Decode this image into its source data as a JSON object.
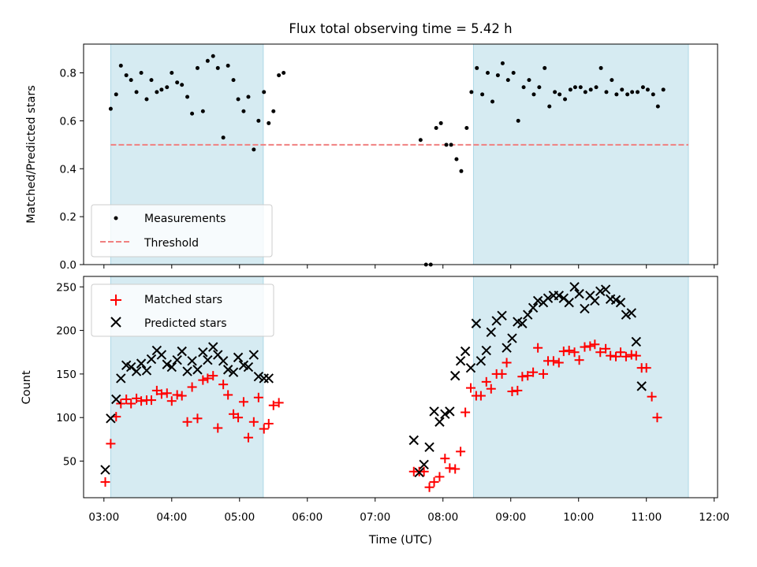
{
  "chart_data": [
    {
      "type": "scatter",
      "title": "Flux total observing time = 5.42 h",
      "xlabel": "",
      "ylabel": "Matched/Predicted stars",
      "ylim": [
        0,
        0.92
      ],
      "yticks": [
        "0.0",
        "0.2",
        "0.4",
        "0.6",
        "0.8"
      ],
      "yticks_values": [
        0.0,
        0.2,
        0.4,
        0.6,
        0.8
      ],
      "grid": false,
      "legend_position": "lower-left",
      "threshold": 0.5,
      "shaded_intervals": [
        [
          3.1,
          5.35
        ],
        [
          8.45,
          11.62
        ]
      ],
      "series": [
        {
          "name": "Measurements",
          "color": "#000000",
          "marker": "dot",
          "points": [
            [
              3.1,
              0.65
            ],
            [
              3.18,
              0.71
            ],
            [
              3.25,
              0.83
            ],
            [
              3.33,
              0.79
            ],
            [
              3.4,
              0.77
            ],
            [
              3.48,
              0.72
            ],
            [
              3.55,
              0.8
            ],
            [
              3.63,
              0.69
            ],
            [
              3.7,
              0.77
            ],
            [
              3.78,
              0.72
            ],
            [
              3.85,
              0.73
            ],
            [
              3.93,
              0.74
            ],
            [
              4.0,
              0.8
            ],
            [
              4.08,
              0.76
            ],
            [
              4.15,
              0.75
            ],
            [
              4.23,
              0.7
            ],
            [
              4.3,
              0.63
            ],
            [
              4.38,
              0.82
            ],
            [
              4.46,
              0.64
            ],
            [
              4.53,
              0.85
            ],
            [
              4.61,
              0.87
            ],
            [
              4.68,
              0.82
            ],
            [
              4.76,
              0.53
            ],
            [
              4.83,
              0.83
            ],
            [
              4.91,
              0.77
            ],
            [
              4.98,
              0.69
            ],
            [
              5.06,
              0.64
            ],
            [
              5.13,
              0.7
            ],
            [
              5.21,
              0.48
            ],
            [
              5.28,
              0.6
            ],
            [
              5.36,
              0.72
            ],
            [
              5.43,
              0.59
            ],
            [
              5.5,
              0.64
            ],
            [
              5.58,
              0.79
            ],
            [
              5.65,
              0.8
            ],
            [
              7.67,
              0.52
            ],
            [
              7.75,
              0.0
            ],
            [
              7.82,
              0.0
            ],
            [
              7.9,
              0.57
            ],
            [
              7.97,
              0.59
            ],
            [
              8.05,
              0.5
            ],
            [
              8.12,
              0.5
            ],
            [
              8.2,
              0.44
            ],
            [
              8.27,
              0.39
            ],
            [
              8.35,
              0.57
            ],
            [
              8.42,
              0.72
            ],
            [
              8.5,
              0.82
            ],
            [
              8.58,
              0.71
            ],
            [
              8.66,
              0.8
            ],
            [
              8.73,
              0.68
            ],
            [
              8.81,
              0.79
            ],
            [
              8.88,
              0.84
            ],
            [
              8.96,
              0.77
            ],
            [
              9.04,
              0.8
            ],
            [
              9.11,
              0.6
            ],
            [
              9.19,
              0.74
            ],
            [
              9.27,
              0.77
            ],
            [
              9.34,
              0.71
            ],
            [
              9.42,
              0.74
            ],
            [
              9.5,
              0.82
            ],
            [
              9.57,
              0.66
            ],
            [
              9.65,
              0.72
            ],
            [
              9.72,
              0.71
            ],
            [
              9.8,
              0.69
            ],
            [
              9.88,
              0.73
            ],
            [
              9.95,
              0.74
            ],
            [
              10.03,
              0.74
            ],
            [
              10.1,
              0.72
            ],
            [
              10.18,
              0.73
            ],
            [
              10.26,
              0.74
            ],
            [
              10.33,
              0.82
            ],
            [
              10.41,
              0.72
            ],
            [
              10.49,
              0.77
            ],
            [
              10.56,
              0.71
            ],
            [
              10.64,
              0.73
            ],
            [
              10.72,
              0.71
            ],
            [
              10.79,
              0.72
            ],
            [
              10.87,
              0.72
            ],
            [
              10.95,
              0.74
            ],
            [
              11.02,
              0.73
            ],
            [
              11.1,
              0.71
            ],
            [
              11.17,
              0.66
            ],
            [
              11.25,
              0.73
            ]
          ]
        },
        {
          "name": "Threshold",
          "color": "#f08080",
          "style": "dashed",
          "values": [
            0.5
          ]
        }
      ]
    },
    {
      "type": "scatter",
      "title": "",
      "xlabel": "Time (UTC)",
      "ylabel": "Count",
      "ylim": [
        8,
        262
      ],
      "yticks": [
        "50",
        "100",
        "150",
        "200",
        "250"
      ],
      "yticks_values": [
        50,
        100,
        150,
        200,
        250
      ],
      "xlim": [
        2.7,
        12.05
      ],
      "xticks": [
        "03:00",
        "04:00",
        "05:00",
        "06:00",
        "07:00",
        "08:00",
        "09:00",
        "10:00",
        "11:00",
        "12:00"
      ],
      "xticks_values": [
        3,
        4,
        5,
        6,
        7,
        8,
        9,
        10,
        11,
        12
      ],
      "grid": false,
      "legend_position": "upper-left",
      "shaded_intervals": [
        [
          3.1,
          5.35
        ],
        [
          8.45,
          11.62
        ]
      ],
      "series": [
        {
          "name": "Matched stars",
          "color": "#ff0000",
          "marker": "plus",
          "points": [
            [
              3.02,
              26
            ],
            [
              3.1,
              70
            ],
            [
              3.18,
              101
            ],
            [
              3.25,
              116
            ],
            [
              3.33,
              121
            ],
            [
              3.4,
              116
            ],
            [
              3.48,
              122
            ],
            [
              3.55,
              119
            ],
            [
              3.63,
              120
            ],
            [
              3.7,
              120
            ],
            [
              3.78,
              131
            ],
            [
              3.85,
              127
            ],
            [
              3.93,
              128
            ],
            [
              4.0,
              119
            ],
            [
              4.08,
              126
            ],
            [
              4.15,
              125
            ],
            [
              4.23,
              95
            ],
            [
              4.3,
              135
            ],
            [
              4.38,
              99
            ],
            [
              4.46,
              143
            ],
            [
              4.53,
              145
            ],
            [
              4.61,
              148
            ],
            [
              4.68,
              88
            ],
            [
              4.76,
              138
            ],
            [
              4.83,
              126
            ],
            [
              4.91,
              104
            ],
            [
              4.98,
              100
            ],
            [
              5.06,
              118
            ],
            [
              5.13,
              77
            ],
            [
              5.21,
              95
            ],
            [
              5.28,
              123
            ],
            [
              5.36,
              87
            ],
            [
              5.43,
              93
            ],
            [
              5.5,
              114
            ],
            [
              5.58,
              117
            ],
            [
              7.57,
              38
            ],
            [
              7.65,
              38
            ],
            [
              7.72,
              38
            ],
            [
              7.8,
              20
            ],
            [
              7.87,
              26
            ],
            [
              7.95,
              32
            ],
            [
              8.03,
              53
            ],
            [
              8.1,
              42
            ],
            [
              8.18,
              41
            ],
            [
              8.26,
              61
            ],
            [
              8.33,
              106
            ],
            [
              8.41,
              134
            ],
            [
              8.49,
              125
            ],
            [
              8.56,
              125
            ],
            [
              8.64,
              141
            ],
            [
              8.71,
              133
            ],
            [
              8.79,
              150
            ],
            [
              8.87,
              150
            ],
            [
              8.94,
              163
            ],
            [
              9.02,
              130
            ],
            [
              9.1,
              131
            ],
            [
              9.17,
              147
            ],
            [
              9.25,
              148
            ],
            [
              9.33,
              152
            ],
            [
              9.4,
              180
            ],
            [
              9.48,
              150
            ],
            [
              9.55,
              165
            ],
            [
              9.63,
              165
            ],
            [
              9.71,
              163
            ],
            [
              9.78,
              176
            ],
            [
              9.86,
              177
            ],
            [
              9.94,
              175
            ],
            [
              10.01,
              166
            ],
            [
              10.09,
              181
            ],
            [
              10.17,
              182
            ],
            [
              10.24,
              184
            ],
            [
              10.32,
              175
            ],
            [
              10.4,
              179
            ],
            [
              10.47,
              171
            ],
            [
              10.55,
              170
            ],
            [
              10.62,
              175
            ],
            [
              10.7,
              170
            ],
            [
              10.78,
              172
            ],
            [
              10.85,
              171
            ],
            [
              10.93,
              157
            ],
            [
              11.0,
              157
            ],
            [
              11.08,
              124
            ],
            [
              11.16,
              100
            ]
          ]
        },
        {
          "name": "Predicted stars",
          "color": "#000000",
          "marker": "x",
          "points": [
            [
              3.02,
              40
            ],
            [
              3.1,
              99
            ],
            [
              3.18,
              121
            ],
            [
              3.25,
              145
            ],
            [
              3.33,
              160
            ],
            [
              3.4,
              158
            ],
            [
              3.48,
              153
            ],
            [
              3.55,
              162
            ],
            [
              3.63,
              154
            ],
            [
              3.7,
              167
            ],
            [
              3.78,
              177
            ],
            [
              3.85,
              172
            ],
            [
              3.93,
              161
            ],
            [
              4.0,
              158
            ],
            [
              4.08,
              166
            ],
            [
              4.15,
              176
            ],
            [
              4.23,
              153
            ],
            [
              4.3,
              165
            ],
            [
              4.38,
              155
            ],
            [
              4.46,
              175
            ],
            [
              4.53,
              166
            ],
            [
              4.61,
              181
            ],
            [
              4.68,
              172
            ],
            [
              4.76,
              165
            ],
            [
              4.83,
              155
            ],
            [
              4.91,
              152
            ],
            [
              4.98,
              169
            ],
            [
              5.06,
              160
            ],
            [
              5.13,
              158
            ],
            [
              5.21,
              172
            ],
            [
              5.28,
              147
            ],
            [
              5.36,
              145
            ],
            [
              5.43,
              145
            ],
            [
              7.57,
              74
            ],
            [
              7.65,
              37
            ],
            [
              7.72,
              46
            ],
            [
              7.8,
              66
            ],
            [
              7.87,
              107
            ],
            [
              7.95,
              95
            ],
            [
              8.03,
              104
            ],
            [
              8.1,
              107
            ],
            [
              8.18,
              148
            ],
            [
              8.26,
              165
            ],
            [
              8.33,
              176
            ],
            [
              8.41,
              157
            ],
            [
              8.49,
              208
            ],
            [
              8.56,
              165
            ],
            [
              8.64,
              177
            ],
            [
              8.71,
              198
            ],
            [
              8.79,
              211
            ],
            [
              8.87,
              217
            ],
            [
              8.94,
              180
            ],
            [
              9.02,
              191
            ],
            [
              9.1,
              210
            ],
            [
              9.17,
              208
            ],
            [
              9.25,
              218
            ],
            [
              9.33,
              226
            ],
            [
              9.4,
              234
            ],
            [
              9.48,
              232
            ],
            [
              9.55,
              237
            ],
            [
              9.63,
              240
            ],
            [
              9.71,
              240
            ],
            [
              9.78,
              237
            ],
            [
              9.86,
              232
            ],
            [
              9.94,
              250
            ],
            [
              10.01,
              242
            ],
            [
              10.09,
              225
            ],
            [
              10.17,
              240
            ],
            [
              10.24,
              234
            ],
            [
              10.32,
              245
            ],
            [
              10.4,
              247
            ],
            [
              10.47,
              236
            ],
            [
              10.55,
              235
            ],
            [
              10.62,
              232
            ],
            [
              10.7,
              218
            ],
            [
              10.78,
              220
            ],
            [
              10.85,
              187
            ],
            [
              10.93,
              136
            ]
          ]
        }
      ]
    }
  ]
}
